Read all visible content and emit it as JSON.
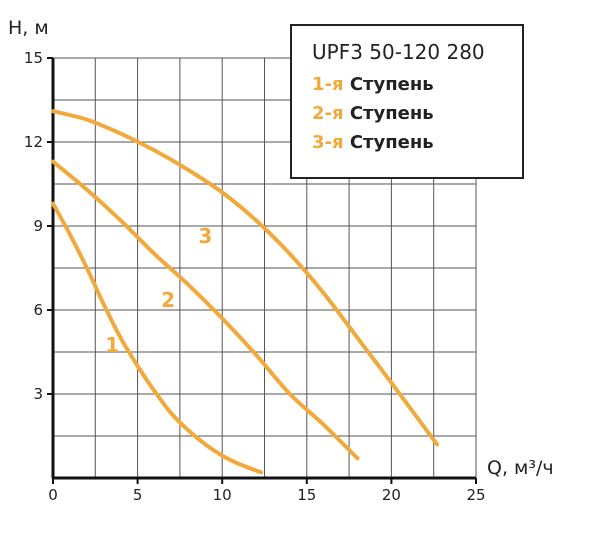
{
  "chart_data": {
    "type": "line",
    "title": "UPF3 50-120 280",
    "xlabel": "Q, м³/ч",
    "ylabel": "H, м",
    "xlim": [
      0,
      25
    ],
    "ylim": [
      0,
      15
    ],
    "x_ticks": [
      "0",
      "5",
      "10",
      "15",
      "20",
      "25"
    ],
    "y_ticks": [
      "3",
      "6",
      "9",
      "12",
      "15"
    ],
    "grid": true,
    "legend_placement": "top-right",
    "series_color": "#f2a93b",
    "series": [
      {
        "name": "1-я Ступень",
        "label": "1",
        "x": [
          0,
          1,
          2,
          3,
          4,
          5,
          6,
          7,
          8,
          9,
          10,
          11,
          12.3
        ],
        "y": [
          9.8,
          8.7,
          7.5,
          6.2,
          5.0,
          4.0,
          3.1,
          2.3,
          1.7,
          1.2,
          0.8,
          0.5,
          0.2
        ]
      },
      {
        "name": "2-я Ступень",
        "label": "2",
        "x": [
          0,
          2,
          4,
          6,
          8,
          10,
          12,
          14,
          16,
          18
        ],
        "y": [
          11.3,
          10.3,
          9.2,
          8.0,
          6.9,
          5.7,
          4.4,
          3.0,
          1.9,
          0.7
        ]
      },
      {
        "name": "3-я Ступень",
        "label": "3",
        "x": [
          0,
          2,
          4,
          6,
          8,
          10,
          12,
          14,
          16,
          18,
          20,
          22.7
        ],
        "y": [
          13.1,
          12.8,
          12.3,
          11.7,
          11.0,
          10.2,
          9.2,
          8.0,
          6.6,
          5.0,
          3.4,
          1.2
        ]
      }
    ],
    "curve_label_positions": [
      {
        "label": "1",
        "x": 3.5,
        "y": 4.5
      },
      {
        "label": "2",
        "x": 6.8,
        "y": 6.1
      },
      {
        "label": "3",
        "x": 9.0,
        "y": 8.4
      }
    ]
  }
}
